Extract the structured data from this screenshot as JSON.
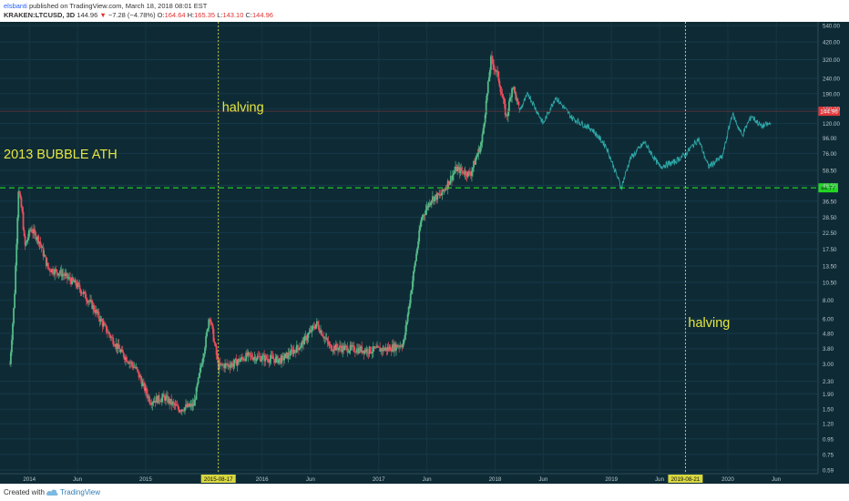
{
  "header": {
    "author": "elsbanti",
    "published": "published on TradingView.com, March 18, 2018 08:01 EST",
    "symbol": "KRAKEN:LTCUSD, 3D",
    "price": "144.96",
    "arrow": "▼",
    "change": "−7.28 (−4.78%)",
    "o_label": "O:",
    "o": "164.64",
    "h_label": "H:",
    "h": "165.35",
    "l_label": "L:",
    "l": "143.10",
    "c_label": "C:",
    "c": "144.96"
  },
  "footer": {
    "created": "Created with",
    "brand": "TradingView"
  },
  "colors": {
    "background": "#0e2b35",
    "up": "#53b987",
    "down": "#eb4d5c",
    "projection": "#2ea7a7",
    "ath_line": "#23d923",
    "halving": "#d8d840",
    "annotation": "#e6e640"
  },
  "chart_data": {
    "type": "candlestick",
    "symbol": "KRAKEN:LTCUSD",
    "interval": "3D",
    "y_scale": "log",
    "ylim": [
      0.59,
      540
    ],
    "y_ticks": [
      "540.00",
      "420.00",
      "320.00",
      "240.00",
      "190.00",
      "150.00",
      "120.00",
      "96.00",
      "76.00",
      "58.50",
      "46.50",
      "36.50",
      "28.50",
      "22.50",
      "17.50",
      "13.50",
      "10.50",
      "8.00",
      "6.00",
      "4.80",
      "3.80",
      "3.00",
      "2.30",
      "1.90",
      "1.50",
      "1.20",
      "0.95",
      "0.75",
      "0.59"
    ],
    "x_ticks": [
      "2014",
      "Jun",
      "2015",
      "2015-08-17",
      "2016",
      "Jun",
      "2017",
      "Jun",
      "2018",
      "Jun",
      "2019",
      "Jun",
      "2019-08-21",
      "2020",
      "Jun"
    ],
    "last_price": {
      "value": 144.96,
      "label": "144.96"
    },
    "ath_level": {
      "value": 44.77,
      "label": "44.77"
    },
    "annotations": [
      "2013 BUBBLE ATH",
      "halving",
      "halving"
    ],
    "halving_dates": [
      "2015-08-17",
      "2019-08-21"
    ],
    "price_path": [
      {
        "date": "2013-11-01",
        "close": 3.0
      },
      {
        "date": "2013-11-15",
        "close": 8.0
      },
      {
        "date": "2013-11-28",
        "close": 44.0
      },
      {
        "date": "2013-12-10",
        "close": 30.0
      },
      {
        "date": "2013-12-18",
        "close": 18.0
      },
      {
        "date": "2014-01-05",
        "close": 24.0
      },
      {
        "date": "2014-02-01",
        "close": 20.0
      },
      {
        "date": "2014-03-01",
        "close": 13.0
      },
      {
        "date": "2014-04-15",
        "close": 12.0
      },
      {
        "date": "2014-06-01",
        "close": 10.0
      },
      {
        "date": "2014-07-15",
        "close": 7.5
      },
      {
        "date": "2014-09-01",
        "close": 5.0
      },
      {
        "date": "2014-10-15",
        "close": 3.6
      },
      {
        "date": "2014-12-01",
        "close": 2.8
      },
      {
        "date": "2015-01-15",
        "close": 1.7
      },
      {
        "date": "2015-03-01",
        "close": 1.8
      },
      {
        "date": "2015-04-15",
        "close": 1.5
      },
      {
        "date": "2015-06-01",
        "close": 1.6
      },
      {
        "date": "2015-07-10",
        "close": 4.5
      },
      {
        "date": "2015-07-20",
        "close": 6.5
      },
      {
        "date": "2015-08-17",
        "close": 2.9
      },
      {
        "date": "2015-10-01",
        "close": 3.0
      },
      {
        "date": "2015-11-15",
        "close": 3.4
      },
      {
        "date": "2016-01-01",
        "close": 3.3
      },
      {
        "date": "2016-03-01",
        "close": 3.2
      },
      {
        "date": "2016-05-01",
        "close": 4.0
      },
      {
        "date": "2016-06-20",
        "close": 5.6
      },
      {
        "date": "2016-08-01",
        "close": 3.9
      },
      {
        "date": "2016-10-01",
        "close": 3.8
      },
      {
        "date": "2016-12-01",
        "close": 3.7
      },
      {
        "date": "2017-02-01",
        "close": 3.8
      },
      {
        "date": "2017-03-20",
        "close": 4.1
      },
      {
        "date": "2017-04-20",
        "close": 12.0
      },
      {
        "date": "2017-05-15",
        "close": 28.0
      },
      {
        "date": "2017-06-15",
        "close": 38.0
      },
      {
        "date": "2017-07-15",
        "close": 40.0
      },
      {
        "date": "2017-09-01",
        "close": 60.0
      },
      {
        "date": "2017-10-15",
        "close": 55.0
      },
      {
        "date": "2017-11-20",
        "close": 90.0
      },
      {
        "date": "2017-12-19",
        "close": 320.0
      },
      {
        "date": "2018-01-10",
        "close": 250.0
      },
      {
        "date": "2018-02-06",
        "close": 130.0
      },
      {
        "date": "2018-02-25",
        "close": 220.0
      },
      {
        "date": "2018-03-18",
        "close": 144.96
      }
    ],
    "projection_path": [
      {
        "date": "2018-03-18",
        "close": 145.0
      },
      {
        "date": "2018-04-15",
        "close": 190.0
      },
      {
        "date": "2018-06-01",
        "close": 120.0
      },
      {
        "date": "2018-07-10",
        "close": 180.0
      },
      {
        "date": "2018-09-01",
        "close": 130.0
      },
      {
        "date": "2018-11-01",
        "close": 110.0
      },
      {
        "date": "2018-12-15",
        "close": 85.0
      },
      {
        "date": "2019-02-01",
        "close": 45.0
      },
      {
        "date": "2019-03-01",
        "close": 70.0
      },
      {
        "date": "2019-04-15",
        "close": 90.0
      },
      {
        "date": "2019-06-01",
        "close": 62.0
      },
      {
        "date": "2019-07-15",
        "close": 66.0
      },
      {
        "date": "2019-08-21",
        "close": 75.0
      },
      {
        "date": "2019-10-01",
        "close": 95.0
      },
      {
        "date": "2019-11-01",
        "close": 62.0
      },
      {
        "date": "2019-12-15",
        "close": 72.0
      },
      {
        "date": "2020-01-15",
        "close": 140.0
      },
      {
        "date": "2020-02-15",
        "close": 100.0
      },
      {
        "date": "2020-03-15",
        "close": 135.0
      },
      {
        "date": "2020-04-15",
        "close": 115.0
      },
      {
        "date": "2020-05-15",
        "close": 120.0
      }
    ]
  }
}
